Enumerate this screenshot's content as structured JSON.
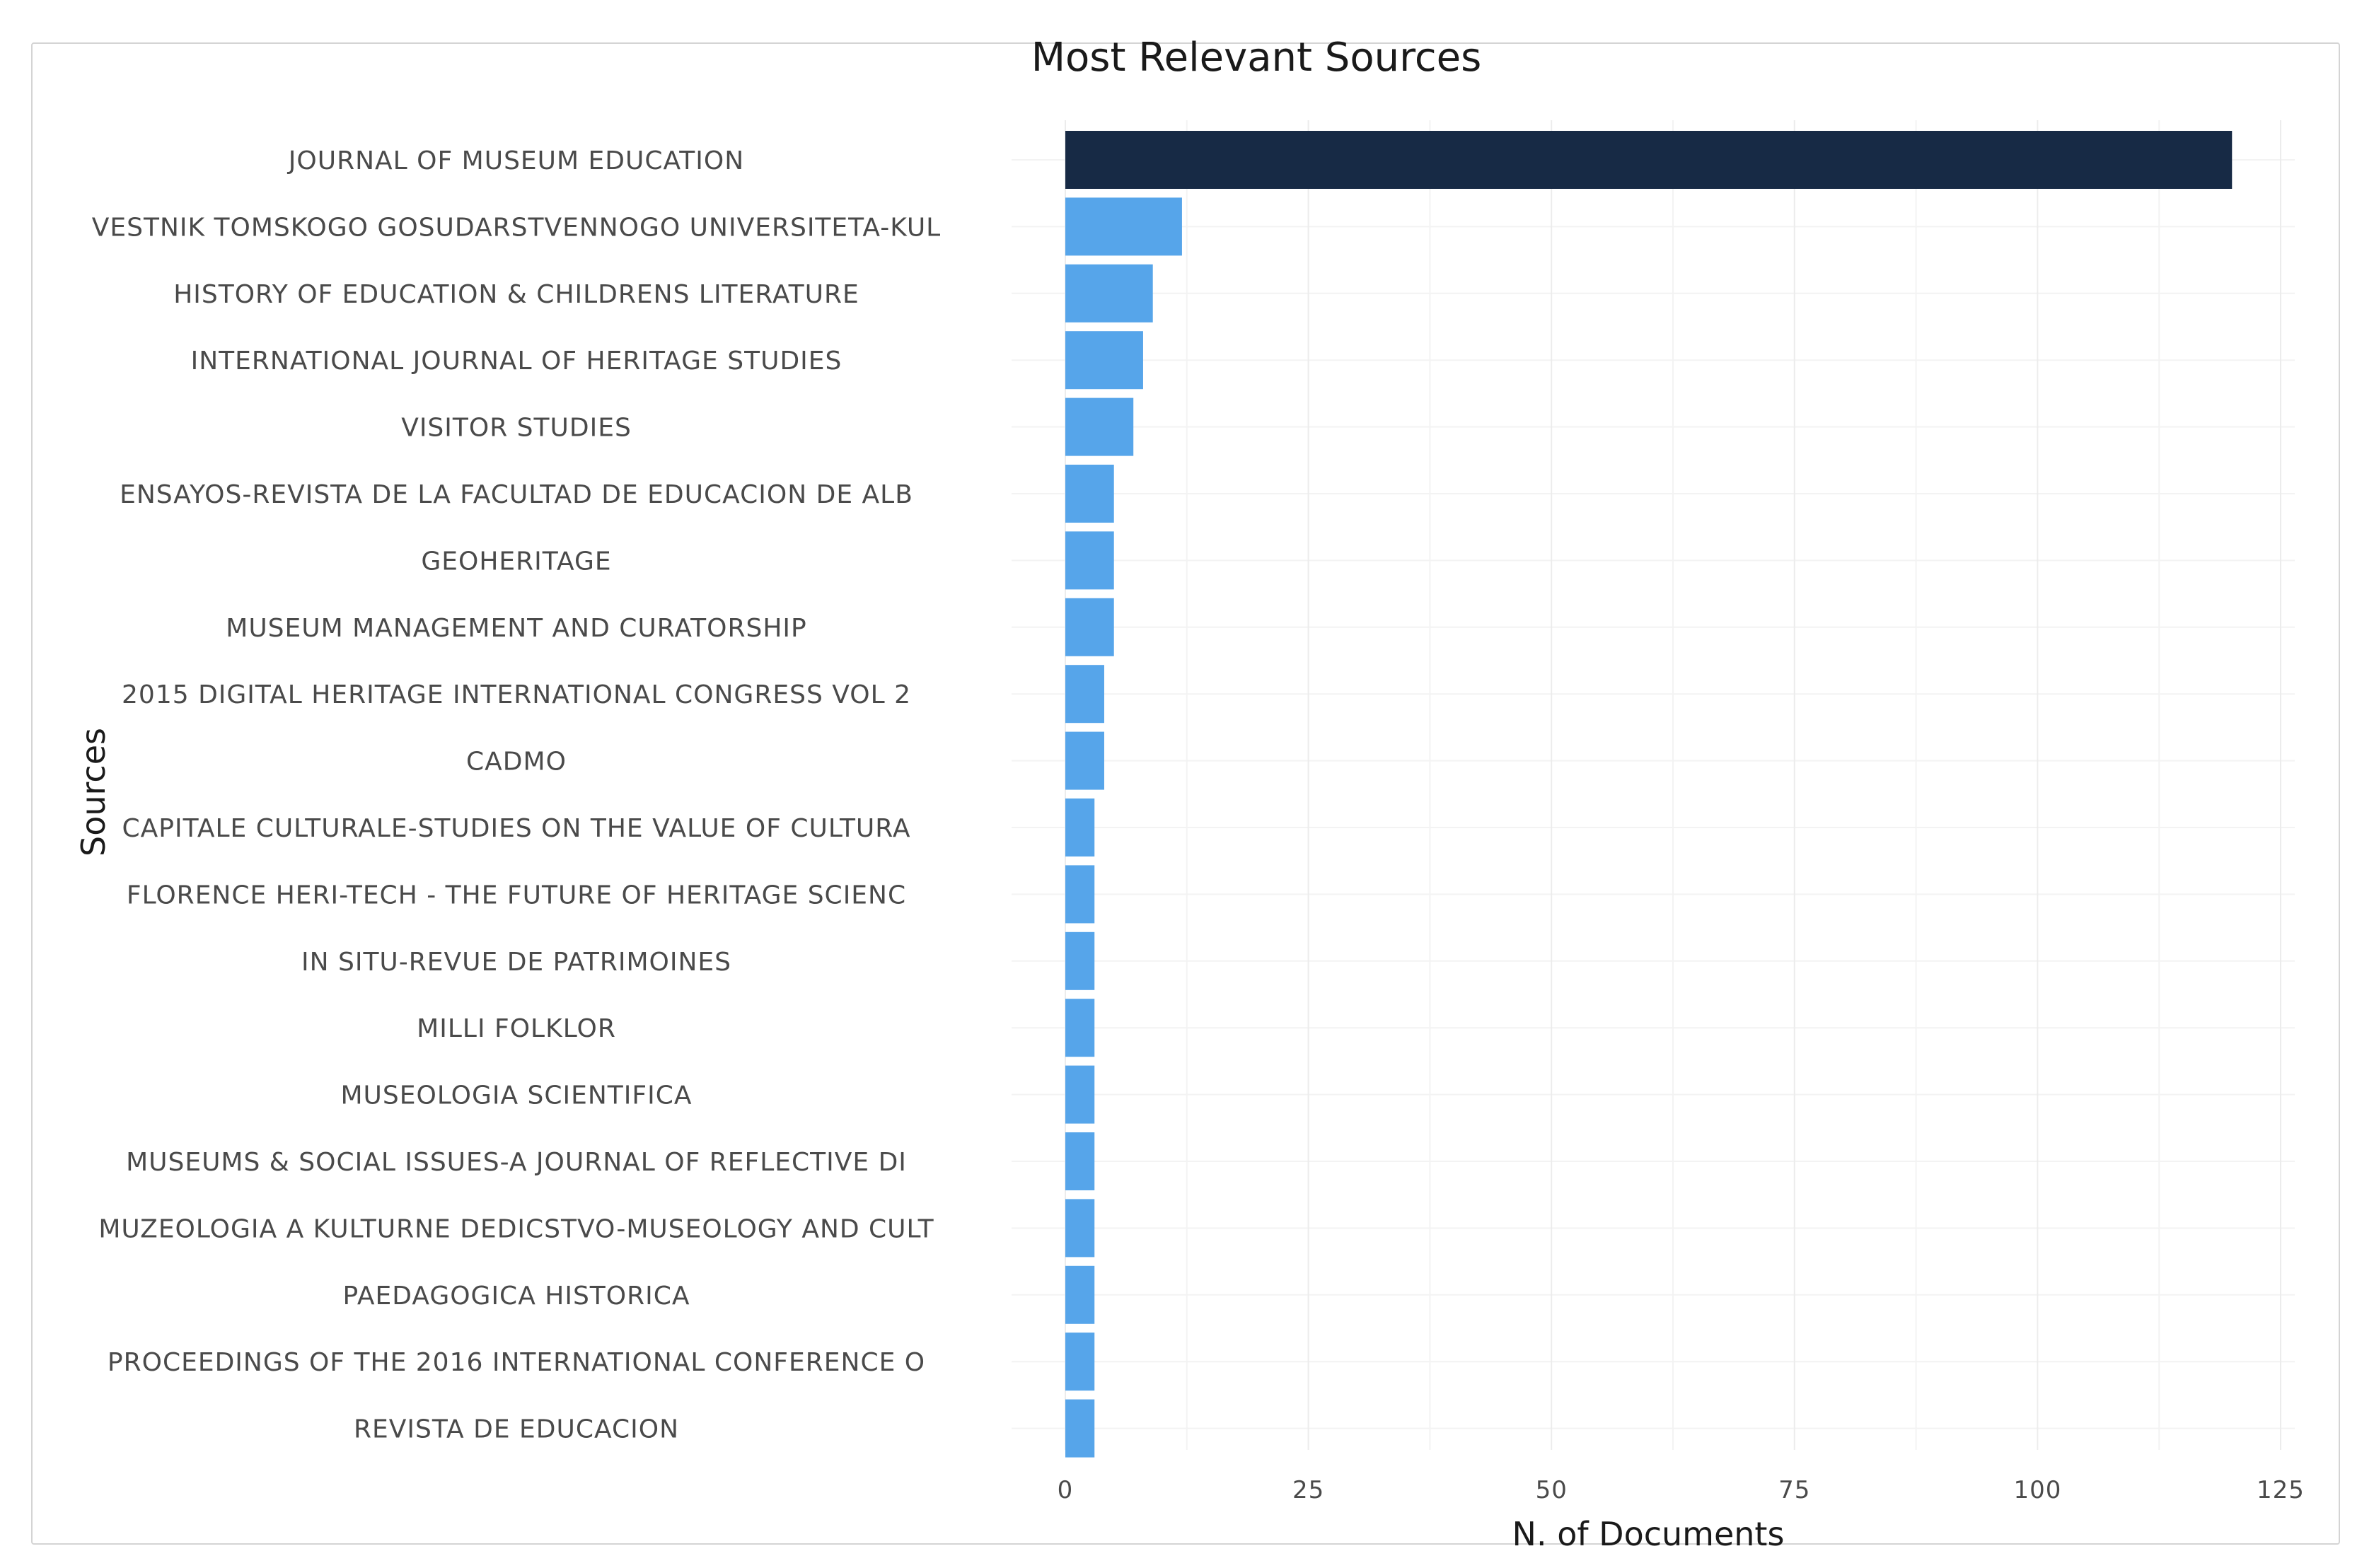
{
  "chart_data": {
    "type": "bar",
    "orientation": "horizontal",
    "title": "Most Relevant Sources",
    "xlabel": "N. of Documents",
    "ylabel": "Sources",
    "xlim": [
      0,
      125
    ],
    "xticks": [
      0,
      25,
      50,
      75,
      100,
      125
    ],
    "grid": true,
    "legend": "none",
    "categories": [
      "JOURNAL OF MUSEUM EDUCATION",
      "VESTNIK TOMSKOGO GOSUDARSTVENNOGO UNIVERSITETA-KUL",
      "HISTORY OF EDUCATION & CHILDRENS LITERATURE",
      "INTERNATIONAL JOURNAL OF HERITAGE STUDIES",
      "VISITOR STUDIES",
      "ENSAYOS-REVISTA DE LA FACULTAD DE EDUCACION DE ALB",
      "GEOHERITAGE",
      "MUSEUM MANAGEMENT AND CURATORSHIP",
      "2015 DIGITAL HERITAGE INTERNATIONAL CONGRESS VOL 2",
      "CADMO",
      "CAPITALE CULTURALE-STUDIES ON THE VALUE OF CULTURA",
      "FLORENCE HERI-TECH - THE FUTURE OF HERITAGE SCIENC",
      "IN SITU-REVUE DE PATRIMOINES",
      "MILLI FOLKLOR",
      "MUSEOLOGIA SCIENTIFICA",
      "MUSEUMS & SOCIAL ISSUES-A JOURNAL OF REFLECTIVE DI",
      "MUZEOLOGIA A KULTURNE DEDICSTVO-MUSEOLOGY AND CULT",
      "PAEDAGOGICA HISTORICA",
      "PROCEEDINGS OF THE 2016 INTERNATIONAL CONFERENCE O",
      "REVISTA DE EDUCACION"
    ],
    "values": [
      120,
      12,
      9,
      8,
      7,
      5,
      5,
      5,
      4,
      4,
      3,
      3,
      3,
      3,
      3,
      3,
      3,
      3,
      3,
      3
    ],
    "colors": {
      "max_bar": "#172a45",
      "bar": "#56a5ea",
      "grid": "#ececec",
      "text": "#4a4a4a"
    }
  }
}
